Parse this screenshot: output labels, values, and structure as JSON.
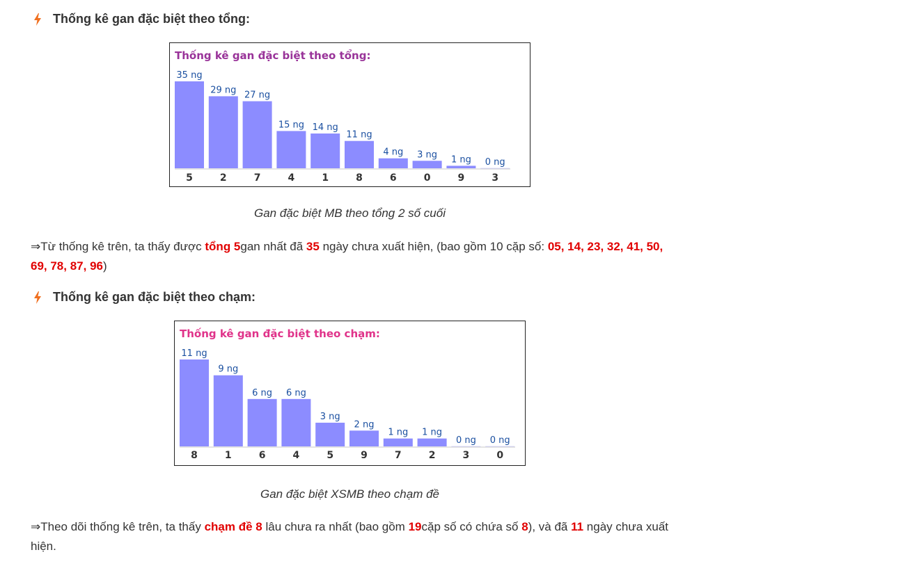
{
  "section1": {
    "heading": "Thống kê gan đặc biệt theo tổng:",
    "caption": "Gan đặc biệt MB theo tổng 2 số cuối",
    "paragraph": {
      "arrow": "⇒",
      "t1": "Từ thống kê trên, ta thấy được ",
      "r1": "tổng 5",
      "t2": "gan nhất đã ",
      "r2": "35",
      "t3": " ngày chưa xuất hiện, (bao gồm 10 cặp số: ",
      "r3": "05, 14, 23, 32, 41, 50, 69, 78, 87, 96",
      "t4": ")"
    }
  },
  "section2": {
    "heading": "Thống kê gan đặc biệt theo chạm:",
    "caption": "Gan đặc biệt XSMB theo chạm đề",
    "paragraph": {
      "arrow": "⇒",
      "t1": "Theo dõi thống kê trên, ta thấy ",
      "r1": "chạm đề 8",
      "t2": " lâu chưa ra nhất (bao gồm ",
      "r2": "19",
      "t3": "cặp số có chứa số ",
      "r3": "8",
      "t4": "), và đã ",
      "r4": "11",
      "t5": " ngày chưa xuất hiện."
    }
  },
  "chart_data": [
    {
      "type": "bar",
      "title": "Thống kê gan đặc biệt theo tổng:",
      "title_color": "#993399",
      "bar_color": "#8c8cff",
      "label_color": "#1a4fa0",
      "unit": "ng",
      "categories": [
        "5",
        "2",
        "7",
        "4",
        "1",
        "8",
        "6",
        "0",
        "9",
        "3"
      ],
      "values": [
        35,
        29,
        27,
        15,
        14,
        11,
        4,
        3,
        1,
        0
      ]
    },
    {
      "type": "bar",
      "title": "Thống kê gan đặc biệt theo chạm:",
      "title_color": "#e0338a",
      "bar_color": "#8c8cff",
      "label_color": "#1a4fa0",
      "unit": "ng",
      "categories": [
        "8",
        "1",
        "6",
        "4",
        "5",
        "9",
        "7",
        "2",
        "3",
        "0"
      ],
      "values": [
        11,
        9,
        6,
        6,
        3,
        2,
        1,
        1,
        0,
        0
      ]
    }
  ],
  "colors": {
    "accent_red": "#e10000",
    "bolt": "#f07020"
  },
  "icons": {
    "heading_icon": "lightning-bolt-icon"
  }
}
